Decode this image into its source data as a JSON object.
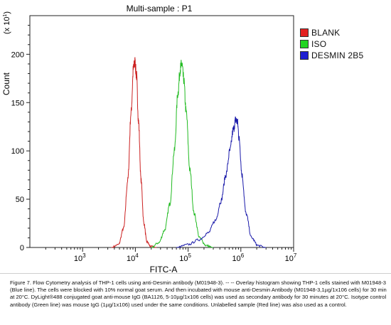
{
  "chart_data": {
    "type": "line",
    "title": "Multi-sample : P1",
    "xlabel": "FITC-A",
    "ylabel": "Count",
    "y_multiplier_label": "(x 10",
    "y_multiplier_exp": "1",
    "y_multiplier_close": ")",
    "xscale": "log",
    "xlim": [
      100,
      10000000
    ],
    "ylim": [
      0,
      240
    ],
    "x_ticks": [
      {
        "base": "10",
        "exp": "3",
        "value": 1000
      },
      {
        "base": "10",
        "exp": "4",
        "value": 10000
      },
      {
        "base": "10",
        "exp": "5",
        "value": 100000
      },
      {
        "base": "10",
        "exp": "6",
        "value": 1000000
      },
      {
        "base": "10",
        "exp": "7",
        "value": 10000000
      }
    ],
    "y_ticks": [
      {
        "label": "0",
        "value": 0
      },
      {
        "label": "50",
        "value": 50
      },
      {
        "label": "100",
        "value": 100
      },
      {
        "label": "150",
        "value": 150
      },
      {
        "label": "200",
        "value": 200
      }
    ],
    "legend_position": "right",
    "series": [
      {
        "name": "BLANK",
        "color": "#cc2222",
        "swatch": "#e32020",
        "x": [
          3500,
          4800,
          6000,
          7200,
          8300,
          9200,
          9800,
          10500,
          11500,
          12800,
          14500,
          16500,
          19500,
          25000
        ],
        "y": [
          0,
          3,
          20,
          70,
          140,
          185,
          192,
          178,
          130,
          70,
          25,
          6,
          1,
          0
        ]
      },
      {
        "name": "ISO",
        "color": "#22bb22",
        "swatch": "#21d421",
        "x": [
          20000,
          28000,
          36000,
          45000,
          55000,
          64000,
          71000,
          76000,
          82000,
          92000,
          108000,
          130000,
          165000,
          220000,
          300000
        ],
        "y": [
          0,
          5,
          18,
          45,
          100,
          160,
          185,
          190,
          175,
          140,
          80,
          35,
          10,
          2,
          0
        ]
      },
      {
        "name": "DESMIN 2B5",
        "color": "#1a1aaa",
        "swatch": "#1f1fd1",
        "x": [
          60000,
          100000,
          160000,
          240000,
          330000,
          420000,
          520000,
          620000,
          720000,
          800000,
          860000,
          930000,
          1050000,
          1250000,
          1600000,
          2100000,
          3000000
        ],
        "y": [
          0,
          3,
          8,
          15,
          28,
          48,
          75,
          100,
          122,
          132,
          130,
          112,
          75,
          35,
          10,
          2,
          0
        ]
      }
    ]
  },
  "caption": "Figure 7. Flow Cytometry analysis of THP-1 cells using anti-Desmin antibody (M01948-3). -- -- Overlay histogram showing THP-1 cells stained with M01948-3 (Blue line). The cells were blocked with 10% normal goat serum. And then incubated with mouse anti-Desmin Antibody (M01948-3,1µg/1x106 cells) for 30 min at 20°C. DyLight®488 conjugated goat anti-mouse IgG (BA1126, 5-10µg/1x106 cells) was used as secondary antibody for 30 minutes at 20°C. Isotype control antibody (Green line) was mouse IgG (1µg/1x106) used under the same conditions. Unlabelled sample (Red line) was also used as a control."
}
